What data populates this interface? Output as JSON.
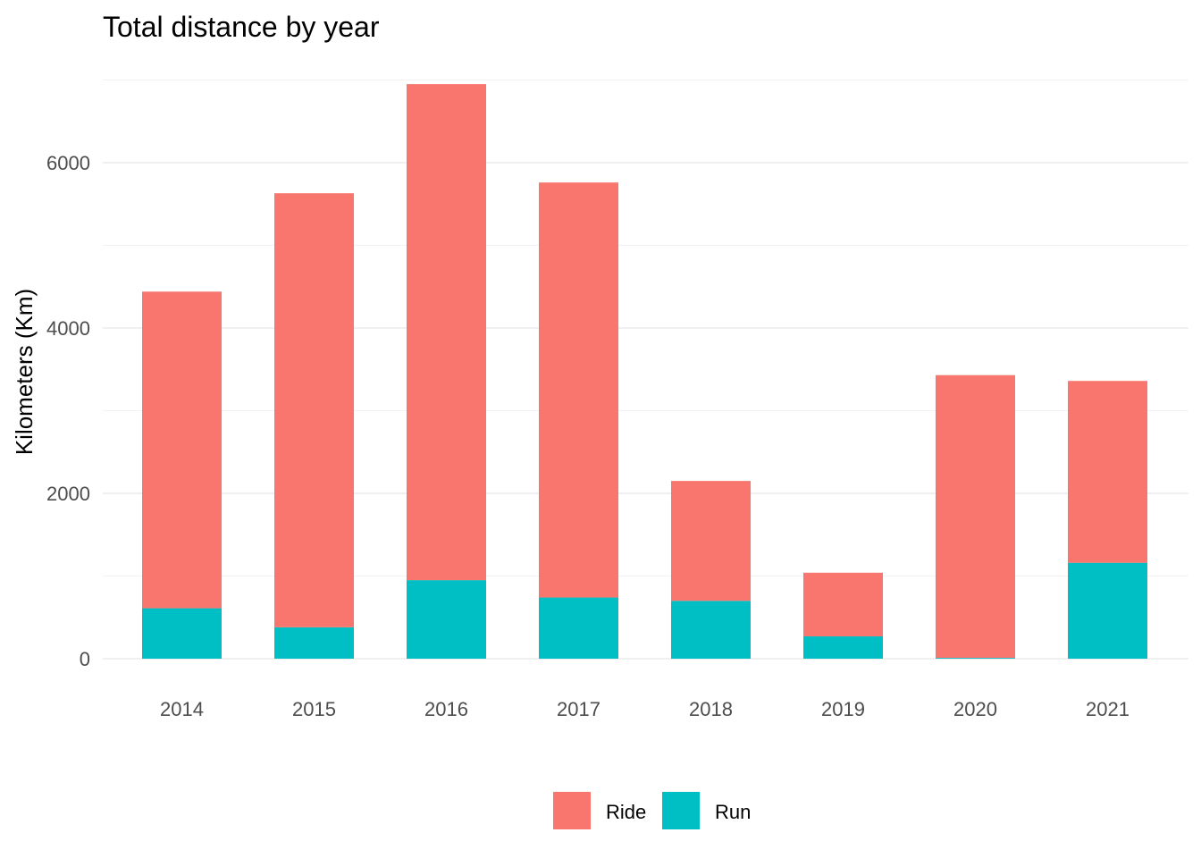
{
  "chart_data": {
    "type": "bar",
    "stacked": true,
    "title": "Total distance by year",
    "xlabel": "",
    "ylabel": "Kilometers (Km)",
    "categories": [
      "2014",
      "2015",
      "2016",
      "2017",
      "2018",
      "2019",
      "2020",
      "2021"
    ],
    "series": [
      {
        "name": "Ride",
        "color": "#F8766D",
        "values": [
          3830,
          5250,
          6000,
          5020,
          1450,
          770,
          3420,
          2200
        ]
      },
      {
        "name": "Run",
        "color": "#00BFC4",
        "values": [
          610,
          380,
          950,
          740,
          700,
          270,
          10,
          1160
        ]
      }
    ],
    "ylim": [
      0,
      7000
    ],
    "yticks": [
      0,
      2000,
      4000,
      6000
    ],
    "grid": true,
    "legend_position": "bottom"
  }
}
